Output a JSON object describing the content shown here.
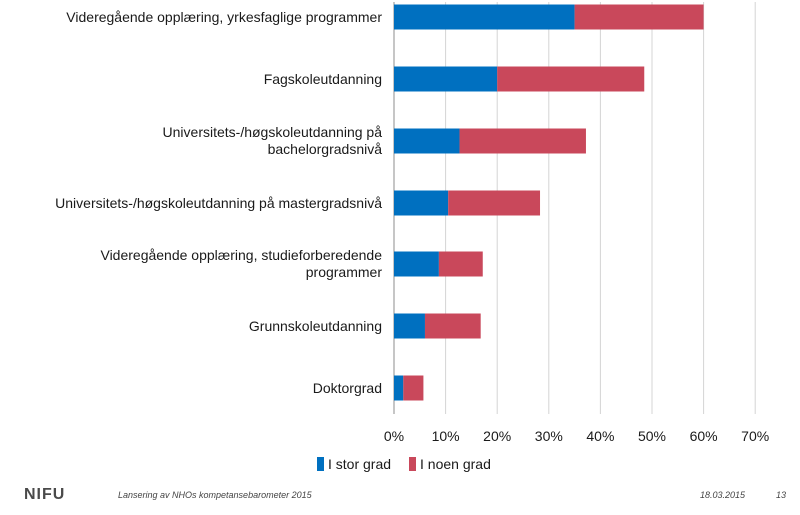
{
  "chart_data": {
    "type": "bar",
    "orientation": "horizontal",
    "stacked": true,
    "categories": [
      "Videregående opplæring, yrkesfaglige programmer",
      "Fagskoleutdanning",
      "Universitets-/høgskoleutdanning på\nbachelorgradsnivå",
      "Universitets-/høgskoleutdanning på mastergradsnivå",
      "Videregående opplæring, studieforberedende\nprogrammer",
      "Grunnskoleutdanning",
      "Doktorgrad"
    ],
    "series": [
      {
        "name": "I stor grad",
        "color": "#0070c0",
        "values": [
          35,
          20,
          12.7,
          10.5,
          8.7,
          6,
          1.8
        ]
      },
      {
        "name": "I noen grad",
        "color": "#c9485b",
        "values": [
          25,
          28.5,
          24.5,
          17.8,
          8.5,
          10.8,
          3.9
        ]
      }
    ],
    "xlim": [
      0,
      70
    ],
    "xticks": [
      "0%",
      "10%",
      "20%",
      "30%",
      "40%",
      "50%",
      "60%",
      "70%"
    ],
    "grid": true,
    "legend_position": "bottom"
  },
  "footer": {
    "logo": "NIFU",
    "caption": "Lansering av NHOs kompetansebarometer 2015",
    "date": "18.03.2015",
    "page": "13"
  }
}
